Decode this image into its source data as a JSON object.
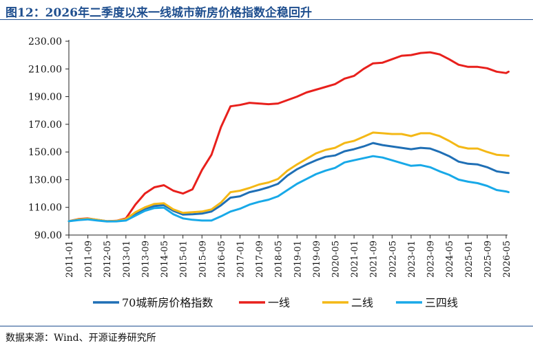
{
  "title": "图12：2026年二季度以来一线城市新房价格指数企稳回升",
  "source": "数据来源：Wind、开源证券研究所",
  "chart_data": {
    "type": "line",
    "title": "图12：2026年二季度以来一线城市新房价格指数企稳回升",
    "xlabel": "",
    "ylabel": "",
    "ylim": [
      90,
      230
    ],
    "y_ticks": [
      "90.00",
      "110.00",
      "130.00",
      "150.00",
      "170.00",
      "190.00",
      "210.00",
      "230.00"
    ],
    "x_ticks": [
      "2011-01",
      "2011-09",
      "2012-05",
      "2013-01",
      "2013-09",
      "2014-05",
      "2015-01",
      "2015-09",
      "2016-05",
      "2017-01",
      "2017-09",
      "2018-05",
      "2019-01",
      "2019-09",
      "2020-05",
      "2021-01",
      "2021-09",
      "2022-05",
      "2023-01",
      "2023-09",
      "2024-05",
      "2025-01",
      "2025-09",
      "2026-05"
    ],
    "x": [
      "2011-01",
      "2011-05",
      "2011-09",
      "2012-01",
      "2012-05",
      "2012-09",
      "2013-01",
      "2013-05",
      "2013-09",
      "2014-01",
      "2014-05",
      "2014-09",
      "2015-01",
      "2015-05",
      "2015-09",
      "2016-01",
      "2016-05",
      "2016-09",
      "2017-01",
      "2017-05",
      "2017-09",
      "2018-01",
      "2018-05",
      "2018-09",
      "2019-01",
      "2019-05",
      "2019-09",
      "2020-01",
      "2020-05",
      "2020-09",
      "2021-01",
      "2021-05",
      "2021-09",
      "2022-01",
      "2022-05",
      "2022-09",
      "2023-01",
      "2023-05",
      "2023-09",
      "2024-01",
      "2024-05",
      "2024-09",
      "2025-01",
      "2025-05",
      "2025-09",
      "2026-01",
      "2026-05",
      "2026-06"
    ],
    "legend_position": "bottom",
    "grid": false,
    "series": [
      {
        "name": "70城新房价格指数",
        "color": "#1f6fb5",
        "values": [
          100.0,
          101.2,
          101.6,
          100.9,
          100.0,
          100.1,
          101.0,
          105.5,
          109.0,
          111.0,
          111.6,
          107.5,
          104.8,
          105.0,
          105.5,
          107.0,
          111.5,
          117.0,
          118.0,
          121.0,
          122.5,
          124.5,
          127.0,
          133.0,
          137.5,
          141.0,
          144.0,
          146.5,
          147.5,
          150.5,
          152.0,
          154.0,
          156.5,
          155.0,
          154.0,
          153.0,
          152.0,
          153.0,
          152.5,
          150.0,
          147.0,
          143.0,
          141.5,
          141.0,
          139.0,
          136.0,
          135.0,
          134.8
        ]
      },
      {
        "name": "一线",
        "color": "#e8201c",
        "values": [
          100.0,
          101.5,
          102.0,
          101.0,
          100.0,
          100.3,
          102.0,
          112.0,
          120.0,
          124.5,
          126.0,
          122.0,
          120.0,
          123.0,
          137.0,
          148.0,
          168.0,
          183.0,
          184.0,
          185.5,
          185.0,
          184.5,
          185.0,
          187.5,
          190.0,
          193.0,
          195.0,
          197.0,
          199.0,
          203.0,
          205.0,
          210.0,
          214.0,
          214.5,
          217.0,
          219.5,
          220.0,
          221.5,
          222.0,
          220.5,
          217.0,
          213.0,
          211.5,
          211.5,
          210.5,
          208.0,
          207.0,
          208.0
        ]
      },
      {
        "name": "二线",
        "color": "#f4b816",
        "values": [
          100.0,
          101.3,
          101.8,
          101.0,
          100.0,
          100.2,
          101.5,
          106.5,
          110.0,
          112.5,
          113.0,
          108.5,
          106.0,
          106.5,
          107.0,
          108.5,
          113.5,
          121.0,
          122.0,
          124.0,
          126.5,
          128.0,
          130.5,
          136.5,
          141.0,
          145.0,
          149.0,
          151.5,
          153.0,
          156.5,
          158.0,
          161.0,
          164.0,
          163.5,
          163.0,
          163.0,
          161.5,
          163.5,
          163.5,
          161.5,
          158.0,
          154.0,
          152.5,
          152.5,
          150.0,
          148.0,
          147.5,
          147.3
        ]
      },
      {
        "name": "三四线",
        "color": "#18a9e8",
        "values": [
          100.0,
          100.8,
          101.3,
          100.5,
          99.8,
          99.9,
          100.5,
          104.0,
          107.5,
          109.5,
          109.8,
          105.0,
          102.0,
          101.0,
          100.5,
          100.5,
          103.5,
          107.0,
          109.0,
          112.0,
          114.0,
          115.5,
          118.0,
          122.5,
          127.0,
          130.5,
          134.0,
          136.5,
          138.5,
          142.5,
          144.0,
          145.5,
          147.0,
          146.0,
          144.0,
          142.0,
          140.0,
          140.5,
          139.0,
          136.0,
          133.5,
          130.0,
          128.5,
          127.5,
          125.5,
          122.5,
          121.5,
          121.0
        ]
      }
    ]
  }
}
